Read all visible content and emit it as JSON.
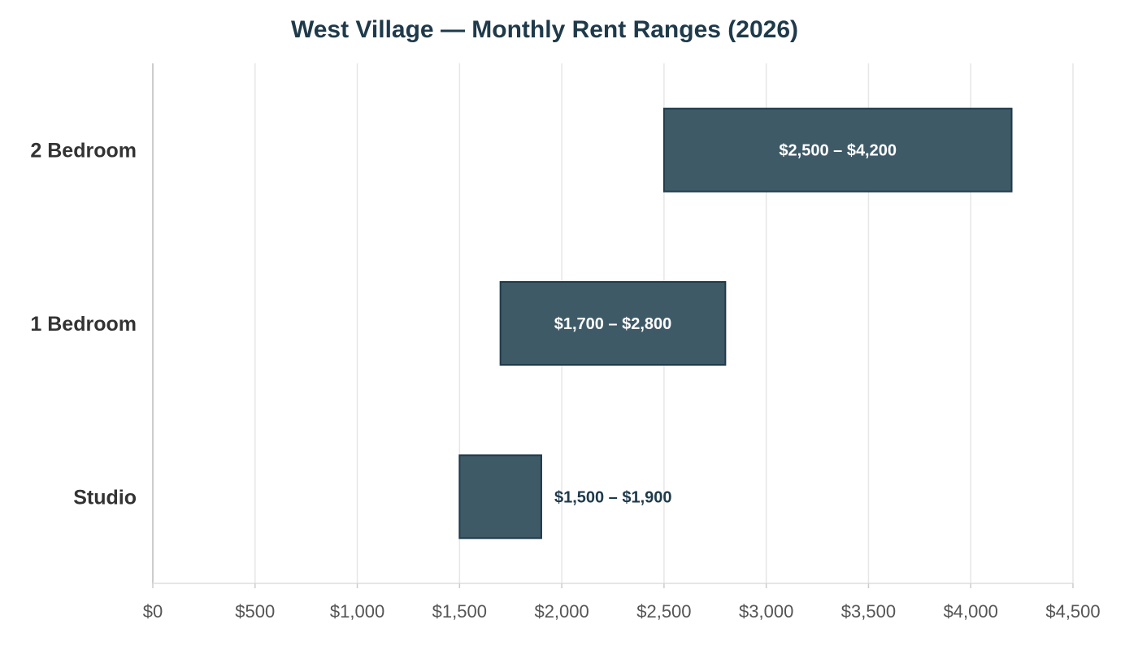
{
  "chart_data": {
    "type": "bar",
    "orientation": "horizontal",
    "title": "West Village — Monthly Rent Ranges (2026)",
    "xlabel": "",
    "ylabel": "",
    "categories": [
      "2 Bedroom",
      "1 Bedroom",
      "Studio"
    ],
    "series": [
      {
        "values": [
          {
            "low": 2500,
            "high": 4200
          },
          {
            "low": 1700,
            "high": 2800
          },
          {
            "low": 1500,
            "high": 1900
          }
        ]
      }
    ],
    "data_labels": [
      "$2,500 – $4,200",
      "$1,700 – $2,800",
      "$1,500 – $1,900"
    ],
    "xlim": [
      0,
      4500
    ],
    "x_ticks": [
      0,
      500,
      1000,
      1500,
      2000,
      2500,
      3000,
      3500,
      4000,
      4500
    ],
    "x_tick_labels": [
      "$0",
      "$500",
      "$1,000",
      "$1,500",
      "$2,000",
      "$2,500",
      "$3,000",
      "$3,500",
      "$4,000",
      "$4,500"
    ],
    "grid": "vertical",
    "legend": "none",
    "colors": {
      "bar_fill": "#3f5a67",
      "bar_stroke": "#1f3a4a",
      "label_inside": "#ffffff",
      "label_outside": "#1f3a4a",
      "category_text": "#333333",
      "tick_text": "#555555",
      "grid": "#e6e6e6",
      "axis": "#cccccc",
      "title": "#1f3a4a"
    }
  }
}
